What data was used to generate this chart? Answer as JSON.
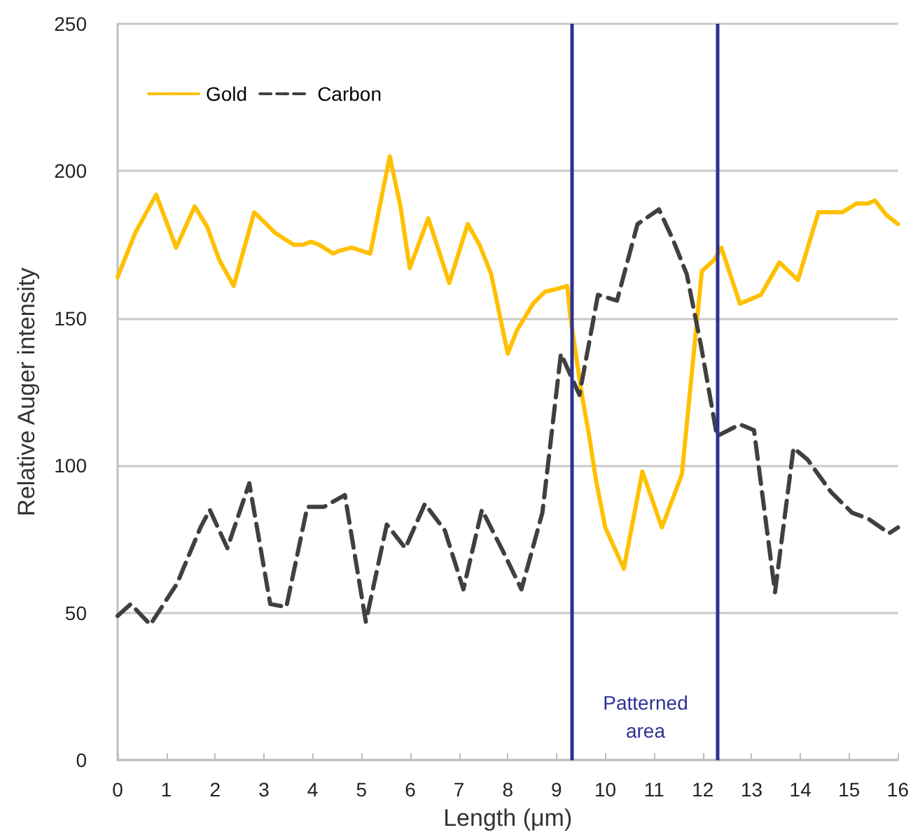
{
  "chart_data": {
    "type": "line",
    "xlabel": "Length (μm)",
    "ylabel": "Relative Auger intensity",
    "xlim": [
      0,
      16
    ],
    "xticks": [
      0,
      1,
      2,
      3,
      4,
      5,
      6,
      7,
      8,
      9,
      10,
      11,
      12,
      13,
      14,
      15,
      16
    ],
    "ylim": [
      0,
      250
    ],
    "yticks": [
      0,
      50,
      100,
      150,
      200,
      250
    ],
    "grid": "y",
    "legend": "top left",
    "marker": "none",
    "series": [
      {
        "name": "Gold",
        "color": "#ffc000",
        "line_style": "solid",
        "x": [
          0,
          0.36,
          0.79,
          1.2,
          1.58,
          1.84,
          2.08,
          2.38,
          2.8,
          2.99,
          3.23,
          3.61,
          3.8,
          3.97,
          4.13,
          4.42,
          4.56,
          4.8,
          4.99,
          5.18,
          5.58,
          5.8,
          5.99,
          6.37,
          6.8,
          7.18,
          7.42,
          7.66,
          8.0,
          8.19,
          8.52,
          8.76,
          9.0,
          9.22,
          9.28,
          9.52,
          9.66,
          9.81,
          10.0,
          10.38,
          10.76,
          11.16,
          11.57,
          11.98,
          12.24,
          12.38,
          12.76,
          12.91,
          13.19,
          13.57,
          13.95,
          14.37,
          14.86,
          15.15,
          15.39,
          15.53,
          15.77,
          16.0
        ],
        "values": [
          164,
          179,
          192,
          174,
          188,
          181,
          170,
          161,
          186,
          183,
          179,
          175,
          175,
          176,
          175,
          172,
          173,
          174,
          173,
          172,
          205,
          188,
          167,
          184,
          162,
          182,
          175,
          165,
          138,
          146,
          155,
          159,
          160,
          161,
          151,
          124,
          111,
          95,
          79,
          65,
          98,
          79,
          97,
          166,
          170,
          174,
          155,
          156,
          158,
          169,
          163,
          186,
          186,
          189,
          189,
          190,
          185,
          182
        ]
      },
      {
        "name": "Carbon",
        "color": "#404040",
        "line_style": "dashed",
        "x": [
          0,
          0.27,
          0.67,
          1.22,
          1.7,
          1.89,
          2.25,
          2.7,
          3.13,
          3.46,
          3.89,
          4.23,
          4.66,
          5.09,
          5.52,
          5.9,
          6.3,
          6.71,
          7.09,
          7.47,
          7.9,
          8.28,
          8.71,
          9.09,
          9.47,
          9.85,
          10.24,
          10.66,
          11.1,
          11.38,
          11.67,
          11.96,
          12.29,
          12.76,
          13.05,
          13.48,
          13.86,
          14.15,
          14.63,
          15.06,
          15.39,
          15.82,
          16.0
        ],
        "values": [
          49,
          53,
          46,
          60,
          79,
          85,
          72,
          94,
          53,
          52,
          86,
          86,
          90,
          47,
          80,
          72,
          87,
          78,
          58,
          85,
          71,
          58,
          84,
          138,
          124,
          158,
          156,
          182,
          187,
          177,
          165,
          141,
          110,
          114,
          112,
          57,
          106,
          102,
          91,
          84,
          82,
          77,
          79
        ]
      }
    ],
    "ref_lines": [
      {
        "axis": "x",
        "value": 9.3,
        "color": "#2e3192"
      },
      {
        "axis": "x",
        "value": 12.3,
        "color": "#2e3192"
      }
    ],
    "annotations": [
      "Patterned area"
    ]
  }
}
